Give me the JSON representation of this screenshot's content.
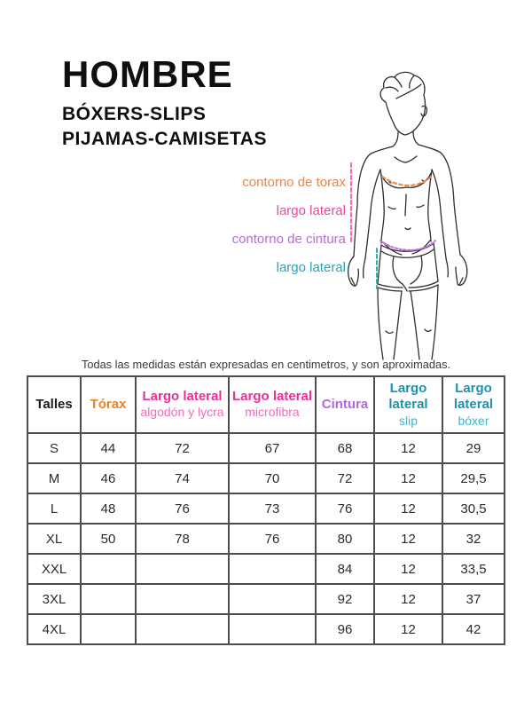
{
  "header": {
    "title": "HOMBRE",
    "subtitle_line1": "BÓXERS-SLIPS",
    "subtitle_line2": "PIJAMAS-CAMISETAS"
  },
  "diagram": {
    "figure": "man-line-drawing-with-boxer-briefs",
    "labels": [
      {
        "text": "contorno de torax",
        "color": "#ef8344"
      },
      {
        "text": "largo lateral",
        "color": "#f0459f"
      },
      {
        "text": "contorno de cintura",
        "color": "#b66bdd"
      },
      {
        "text": "largo lateral",
        "color": "#2ba3b9"
      }
    ],
    "measure_line_colors": {
      "torax_dashed": "#ef8344",
      "largo_lateral_dashed": "#f470ba",
      "cintura_dashed": "#c06ce0",
      "largo_boxer_dashed": "#33a9be"
    }
  },
  "note": "Todas las medidas están expresadas en centimetros, y son aproximadas.",
  "table": {
    "columns": [
      {
        "label": "Talles",
        "sub": "",
        "color": "#1c1c1c",
        "sub_color": ""
      },
      {
        "label": "Tórax",
        "sub": "",
        "color": "#f5801f",
        "sub_color": ""
      },
      {
        "label": "Largo lateral",
        "sub": "algodón y lycra",
        "color": "#ed2e96",
        "sub_color": "#f06eb7"
      },
      {
        "label": "Largo lateral",
        "sub": "microfibra",
        "color": "#ed2e96",
        "sub_color": "#f06eb7"
      },
      {
        "label": "Cintura",
        "sub": "",
        "color": "#b668d9",
        "sub_color": ""
      },
      {
        "label": "Largo lateral",
        "sub": "slip",
        "color": "#1a93ae",
        "sub_color": "#43b3c7"
      },
      {
        "label": "Largo lateral",
        "sub": "bóxer",
        "color": "#1a93ae",
        "sub_color": "#43b3c7"
      }
    ],
    "rows": [
      {
        "size": "S",
        "values": [
          "44",
          "72",
          "67",
          "68",
          "12",
          "29"
        ]
      },
      {
        "size": "M",
        "values": [
          "46",
          "74",
          "70",
          "72",
          "12",
          "29,5"
        ]
      },
      {
        "size": "L",
        "values": [
          "48",
          "76",
          "73",
          "76",
          "12",
          "30,5"
        ]
      },
      {
        "size": "XL",
        "values": [
          "50",
          "78",
          "76",
          "80",
          "12",
          "32"
        ]
      },
      {
        "size": "XXL",
        "values": [
          "",
          "",
          "",
          "84",
          "12",
          "33,5"
        ]
      },
      {
        "size": "3XL",
        "values": [
          "",
          "",
          "",
          "92",
          "12",
          "37"
        ]
      },
      {
        "size": "4XL",
        "values": [
          "",
          "",
          "",
          "96",
          "12",
          "42"
        ]
      }
    ]
  }
}
